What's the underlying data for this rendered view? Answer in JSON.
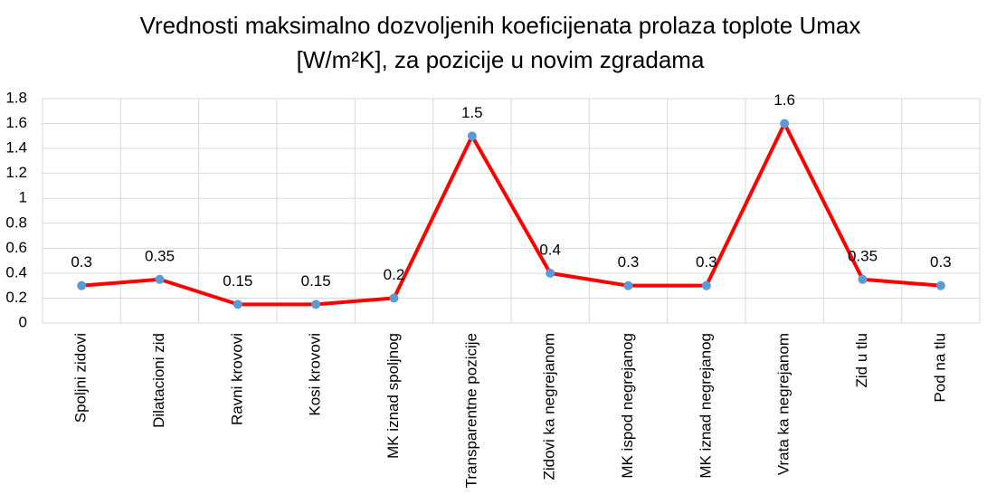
{
  "chart_data": {
    "type": "line",
    "title": [
      "Vrednosti maksimalno dozvoljenih koeficijenata prolaza toplote Umax",
      "[W/m²K], za pozicije u novim zgradama"
    ],
    "categories": [
      "Spoljni zidovi",
      "Dilatacioni zid",
      "Ravni krovovi",
      "Kosi krovovi",
      "MK iznad spoljnog",
      "Transparentne pozicije",
      "Zidovi ka negrejanom",
      "MK ispod negrejanog",
      "MK iznad negrejanog",
      "Vrata ka negrejanom",
      "Zid u tlu",
      "Pod na tlu"
    ],
    "values": [
      0.3,
      0.35,
      0.15,
      0.15,
      0.2,
      1.5,
      0.4,
      0.3,
      0.3,
      1.6,
      0.35,
      0.3
    ],
    "color": "#ff0000",
    "marker_color": "#5b9bd5",
    "ylim": [
      0,
      1.8
    ],
    "yticks": [
      0,
      0.2,
      0.4,
      0.6,
      0.8,
      1,
      1.2,
      1.4,
      1.6,
      1.8
    ],
    "grid": true,
    "data_labels": true
  }
}
